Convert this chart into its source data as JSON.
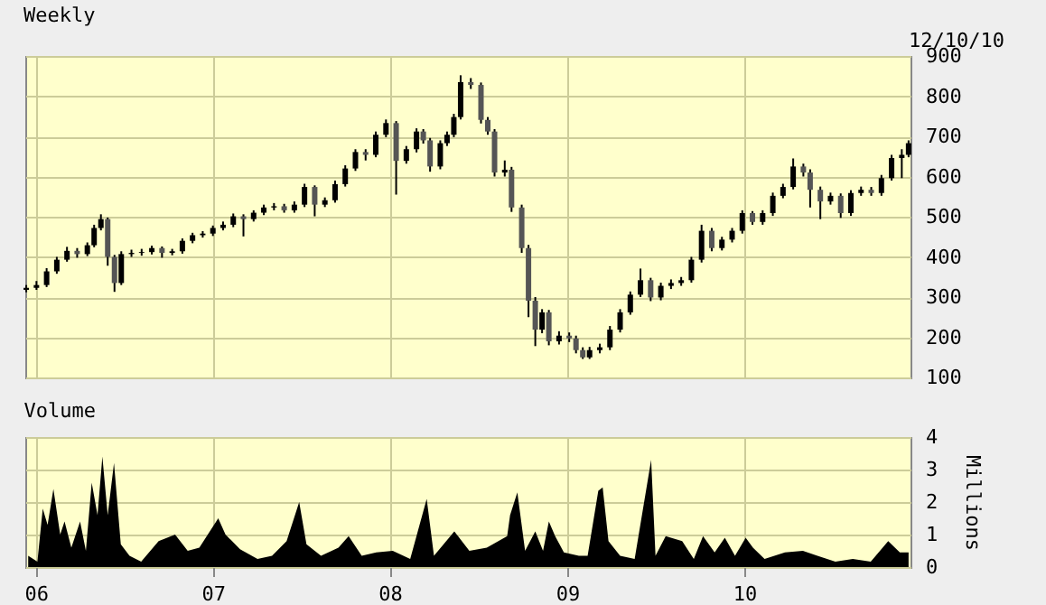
{
  "chart_data": [
    {
      "type": "candlestick",
      "title": "Weekly",
      "annotations": [
        "12/10/10"
      ],
      "x": [
        "2005-12-12",
        "2006-01-02",
        "2006-01-23",
        "2006-02-13",
        "2006-03-06",
        "2006-03-27",
        "2006-04-17",
        "2006-05-01",
        "2006-05-15",
        "2006-05-29",
        "2006-06-12",
        "2006-06-26",
        "2006-07-17",
        "2006-08-07",
        "2006-08-28",
        "2006-09-18",
        "2006-10-09",
        "2006-10-30",
        "2006-11-20",
        "2006-12-11",
        "2007-01-01",
        "2007-01-22",
        "2007-02-12",
        "2007-03-05",
        "2007-03-26",
        "2007-04-16",
        "2007-05-07",
        "2007-05-28",
        "2007-06-18",
        "2007-07-09",
        "2007-07-30",
        "2007-08-20",
        "2007-09-10",
        "2007-10-01",
        "2007-10-22",
        "2007-11-12",
        "2007-12-03",
        "2007-12-24",
        "2008-01-14",
        "2008-02-04",
        "2008-02-25",
        "2008-03-10",
        "2008-03-24",
        "2008-04-14",
        "2008-04-28",
        "2008-05-12",
        "2008-05-26",
        "2008-06-16",
        "2008-07-07",
        "2008-07-21",
        "2008-08-04",
        "2008-08-25",
        "2008-09-08",
        "2008-09-29",
        "2008-10-13",
        "2008-10-27",
        "2008-11-10",
        "2008-11-24",
        "2008-12-15",
        "2009-01-05",
        "2009-01-19",
        "2009-02-02",
        "2009-02-16",
        "2009-03-09",
        "2009-03-30",
        "2009-04-20",
        "2009-05-11",
        "2009-06-01",
        "2009-06-22",
        "2009-07-13",
        "2009-08-03",
        "2009-08-24",
        "2009-09-14",
        "2009-10-05",
        "2009-10-26",
        "2009-11-16",
        "2009-12-07",
        "2009-12-28",
        "2010-01-18",
        "2010-02-08",
        "2010-03-01",
        "2010-03-22",
        "2010-04-12",
        "2010-05-03",
        "2010-05-17",
        "2010-06-07",
        "2010-06-28",
        "2010-07-19",
        "2010-08-09",
        "2010-08-30",
        "2010-09-20",
        "2010-10-11",
        "2010-11-01",
        "2010-11-22",
        "2010-12-06"
      ],
      "ohlc": [
        [
          318,
          330,
          312,
          323
        ],
        [
          323,
          340,
          318,
          330
        ],
        [
          330,
          372,
          325,
          364
        ],
        [
          364,
          400,
          358,
          393
        ],
        [
          393,
          425,
          388,
          415
        ],
        [
          415,
          422,
          398,
          407
        ],
        [
          407,
          436,
          402,
          429
        ],
        [
          429,
          480,
          424,
          472
        ],
        [
          472,
          506,
          466,
          494
        ],
        [
          494,
          498,
          378,
          400
        ],
        [
          400,
          405,
          313,
          335
        ],
        [
          335,
          414,
          330,
          407
        ],
        [
          407,
          418,
          400,
          410
        ],
        [
          410,
          420,
          403,
          412
        ],
        [
          412,
          428,
          406,
          422
        ],
        [
          422,
          426,
          398,
          410
        ],
        [
          410,
          420,
          404,
          414
        ],
        [
          414,
          446,
          408,
          440
        ],
        [
          440,
          460,
          434,
          454
        ],
        [
          454,
          464,
          448,
          458
        ],
        [
          458,
          478,
          452,
          472
        ],
        [
          472,
          488,
          466,
          480
        ],
        [
          480,
          508,
          474,
          501
        ],
        [
          501,
          506,
          451,
          494
        ],
        [
          494,
          516,
          488,
          510
        ],
        [
          510,
          530,
          504,
          523
        ],
        [
          523,
          534,
          516,
          526
        ],
        [
          526,
          532,
          510,
          516
        ],
        [
          516,
          538,
          510,
          530
        ],
        [
          530,
          582,
          524,
          574
        ],
        [
          574,
          578,
          501,
          530
        ],
        [
          530,
          548,
          524,
          541
        ],
        [
          541,
          590,
          535,
          581
        ],
        [
          581,
          628,
          575,
          620
        ],
        [
          620,
          668,
          614,
          661
        ],
        [
          661,
          668,
          640,
          654
        ],
        [
          654,
          712,
          648,
          704
        ],
        [
          704,
          742,
          698,
          733
        ],
        [
          733,
          738,
          555,
          639
        ],
        [
          639,
          676,
          632,
          668
        ],
        [
          668,
          720,
          660,
          712
        ],
        [
          712,
          718,
          682,
          690
        ],
        [
          690,
          696,
          612,
          625
        ],
        [
          625,
          690,
          618,
          683
        ],
        [
          683,
          712,
          676,
          704
        ],
        [
          704,
          756,
          698,
          748
        ],
        [
          748,
          852,
          742,
          835
        ],
        [
          835,
          845,
          818,
          828
        ],
        [
          828,
          834,
          732,
          741
        ],
        [
          741,
          748,
          704,
          712
        ],
        [
          712,
          718,
          600,
          610
        ],
        [
          610,
          640,
          600,
          617
        ],
        [
          617,
          624,
          512,
          523
        ],
        [
          523,
          530,
          410,
          422
        ],
        [
          422,
          430,
          250,
          291
        ],
        [
          291,
          300,
          178,
          219
        ],
        [
          219,
          270,
          210,
          262
        ],
        [
          262,
          268,
          180,
          190
        ],
        [
          190,
          215,
          182,
          204
        ],
        [
          204,
          212,
          188,
          197
        ],
        [
          197,
          204,
          160,
          168
        ],
        [
          168,
          175,
          146,
          150
        ],
        [
          150,
          176,
          146,
          168
        ],
        [
          168,
          184,
          160,
          175
        ],
        [
          175,
          228,
          168,
          219
        ],
        [
          219,
          270,
          212,
          262
        ],
        [
          262,
          314,
          256,
          306
        ],
        [
          306,
          371,
          300,
          342
        ],
        [
          342,
          348,
          290,
          299
        ],
        [
          299,
          336,
          292,
          328
        ],
        [
          328,
          344,
          320,
          335
        ],
        [
          335,
          350,
          328,
          342
        ],
        [
          342,
          400,
          336,
          393
        ],
        [
          393,
          480,
          386,
          465
        ],
        [
          465,
          472,
          414,
          422
        ],
        [
          422,
          450,
          416,
          443
        ],
        [
          443,
          472,
          436,
          465
        ],
        [
          465,
          516,
          458,
          509
        ],
        [
          509,
          514,
          480,
          487
        ],
        [
          487,
          516,
          480,
          509
        ],
        [
          509,
          560,
          502,
          552
        ],
        [
          552,
          582,
          546,
          574
        ],
        [
          574,
          645,
          568,
          625
        ],
        [
          625,
          632,
          600,
          610
        ],
        [
          610,
          618,
          523,
          567
        ],
        [
          567,
          575,
          494,
          538
        ],
        [
          538,
          560,
          530,
          552
        ],
        [
          552,
          558,
          497,
          509
        ],
        [
          509,
          566,
          502,
          559
        ],
        [
          559,
          575,
          552,
          567
        ],
        [
          567,
          574,
          552,
          559
        ],
        [
          559,
          604,
          552,
          596
        ],
        [
          596,
          654,
          590,
          646
        ],
        [
          646,
          668,
          596,
          654
        ],
        [
          654,
          690,
          648,
          683
        ]
      ],
      "xlim": [
        "2005-12-10",
        "2010-12-10"
      ],
      "xticks": [
        {
          "value": "2006-01-01",
          "label": null
        },
        {
          "value": "2007-01-01",
          "label": null
        },
        {
          "value": "2008-01-01",
          "label": null
        },
        {
          "value": "2009-01-01",
          "label": null
        },
        {
          "value": "2010-01-01",
          "label": null
        }
      ],
      "ylim": [
        100,
        900
      ],
      "yticks": [
        100,
        200,
        300,
        400,
        500,
        600,
        700,
        800,
        900
      ],
      "grid": true,
      "tick_labels": "y"
    },
    {
      "type": "area",
      "title": "Volume",
      "ylabel": "Millions",
      "x": [
        "2005-12-16",
        "2006-01-04",
        "2006-01-15",
        "2006-01-25",
        "2006-02-06",
        "2006-02-20",
        "2006-03-01",
        "2006-03-15",
        "2006-04-02",
        "2006-04-14",
        "2006-04-26",
        "2006-05-08",
        "2006-05-18",
        "2006-05-29",
        "2006-06-11",
        "2006-06-25",
        "2006-07-13",
        "2006-08-06",
        "2006-09-11",
        "2006-10-15",
        "2006-11-10",
        "2006-12-04",
        "2007-01-12",
        "2007-01-27",
        "2007-02-26",
        "2007-04-03",
        "2007-05-03",
        "2007-06-02",
        "2007-06-28",
        "2007-07-13",
        "2007-08-12",
        "2007-09-17",
        "2007-10-08",
        "2007-11-04",
        "2007-12-04",
        "2008-01-07",
        "2008-02-12",
        "2008-03-17",
        "2008-04-01",
        "2008-05-13",
        "2008-06-13",
        "2008-07-19",
        "2008-08-30",
        "2008-09-05",
        "2008-09-20",
        "2008-10-06",
        "2008-10-27",
        "2008-11-12",
        "2008-11-24",
        "2008-12-07",
        "2008-12-25",
        "2009-01-25",
        "2009-02-12",
        "2009-03-06",
        "2009-03-15",
        "2009-03-27",
        "2009-04-20",
        "2009-05-20",
        "2009-06-23",
        "2009-07-02",
        "2009-07-23",
        "2009-08-26",
        "2009-09-19",
        "2009-10-08",
        "2009-11-01",
        "2009-11-22",
        "2009-12-13",
        "2010-01-04",
        "2010-01-19",
        "2010-02-12",
        "2010-03-26",
        "2010-05-02",
        "2010-06-01",
        "2010-07-08",
        "2010-08-13",
        "2010-09-19",
        "2010-10-25",
        "2010-11-18",
        "2010-12-06"
      ],
      "series": [
        {
          "color": "#000000",
          "values": [
            0.35,
            0.17,
            1.8,
            1.3,
            2.4,
            1.0,
            1.4,
            0.6,
            1.4,
            0.5,
            2.6,
            1.6,
            3.4,
            1.6,
            3.2,
            0.7,
            0.35,
            0.17,
            0.8,
            1.0,
            0.5,
            0.6,
            1.5,
            1.0,
            0.55,
            0.25,
            0.35,
            0.8,
            2.0,
            0.7,
            0.35,
            0.6,
            0.95,
            0.35,
            0.45,
            0.5,
            0.25,
            2.1,
            0.35,
            1.1,
            0.5,
            0.6,
            0.95,
            1.6,
            2.3,
            0.5,
            1.1,
            0.5,
            1.4,
            0.95,
            0.45,
            0.35,
            0.35,
            2.35,
            2.45,
            0.8,
            0.35,
            0.25,
            3.3,
            0.35,
            0.95,
            0.8,
            0.25,
            0.95,
            0.45,
            0.9,
            0.35,
            0.9,
            0.6,
            0.25,
            0.45,
            0.5,
            0.35,
            0.17,
            0.25,
            0.17,
            0.8,
            0.45,
            0.45
          ]
        }
      ],
      "xlim": [
        "2005-12-10",
        "2010-12-10"
      ],
      "xticks": [
        {
          "value": "2006-01-01",
          "label": "06"
        },
        {
          "value": "2007-01-01",
          "label": "07"
        },
        {
          "value": "2008-01-01",
          "label": "08"
        },
        {
          "value": "2009-01-01",
          "label": "09"
        },
        {
          "value": "2010-01-01",
          "label": "10"
        }
      ],
      "ylim": [
        0,
        4
      ],
      "yticks": [
        0,
        1,
        2,
        3,
        4
      ],
      "grid": true
    }
  ]
}
